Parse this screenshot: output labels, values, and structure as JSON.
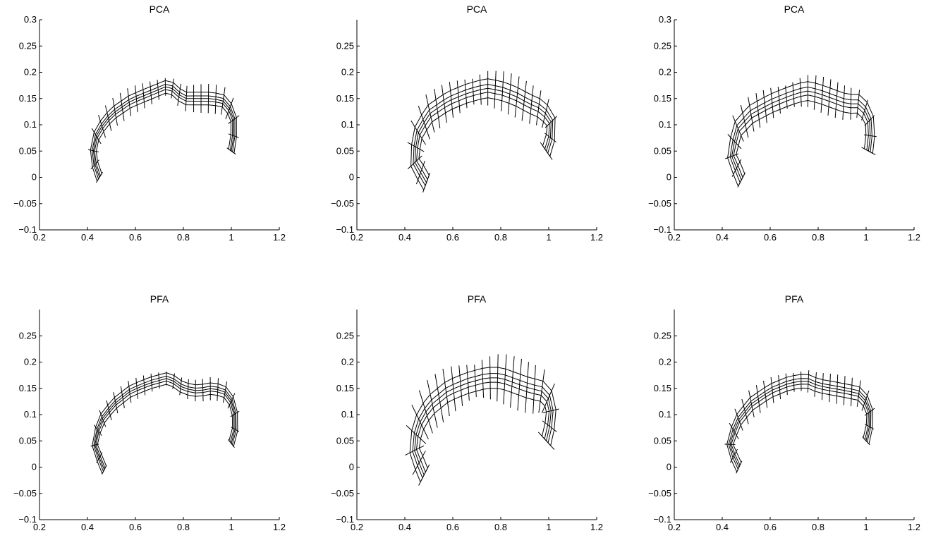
{
  "figure": {
    "background": "#ffffff",
    "line_color": "#000000"
  },
  "chart_data": [
    {
      "type": "line",
      "title": "PCA",
      "xlim": [
        0.2,
        1.2
      ],
      "ylim": [
        -0.1,
        0.3
      ],
      "xticks": [
        "0.2",
        "0.4",
        "0.6",
        "0.8",
        "1",
        "1.2"
      ],
      "yticks": [
        "-0.1",
        "-0.05",
        "0",
        "0.05",
        "0.1",
        "0.15",
        "0.2",
        "0.25",
        "0.3"
      ],
      "mode": {
        "offset": 0.012,
        "vector": 0.028,
        "vec_offset": [
          0.0,
          0.0
        ],
        "width": 1.0,
        "closed_end": false
      },
      "series": [
        {
          "x": [
            0.45,
            0.42,
            0.44,
            0.5,
            0.58,
            0.66,
            0.74,
            0.8,
            0.86,
            0.92,
            0.97,
            1.01,
            1.01,
            1.0
          ],
          "y": [
            0.0,
            0.04,
            0.085,
            0.12,
            0.145,
            0.16,
            0.175,
            0.15,
            0.15,
            0.15,
            0.145,
            0.12,
            0.08,
            0.05
          ]
        }
      ]
    },
    {
      "type": "line",
      "title": "PCA",
      "xlim": [
        0.2,
        1.2
      ],
      "ylim": [
        -0.1,
        0.3
      ],
      "xticks": [
        "0.2",
        "0.4",
        "0.6",
        "0.8",
        "1",
        "1.2"
      ],
      "yticks": [
        "-0.1",
        "-0.05",
        "0",
        "0.05",
        "0.1",
        "0.15",
        "0.2",
        "0.25"
      ],
      "mode": {
        "offset": 0.018,
        "vector": 0.04,
        "vec_offset": [
          0.0,
          0.0
        ],
        "width": 1.2,
        "closed_end": false
      },
      "series": [
        {
          "x": [
            0.49,
            0.44,
            0.45,
            0.5,
            0.58,
            0.66,
            0.74,
            0.8,
            0.86,
            0.92,
            0.97,
            1.01,
            1.01,
            0.99
          ],
          "y": [
            -0.01,
            0.03,
            0.08,
            0.12,
            0.145,
            0.16,
            0.17,
            0.165,
            0.155,
            0.14,
            0.13,
            0.11,
            0.08,
            0.05
          ]
        }
      ]
    },
    {
      "type": "line",
      "title": "PCA",
      "xlim": [
        0.2,
        1.2
      ],
      "ylim": [
        -0.1,
        0.3
      ],
      "xticks": [
        "0.2",
        "0.4",
        "0.6",
        "0.8",
        "1",
        "1.2"
      ],
      "yticks": [
        "-0.1",
        "-0.05",
        "0",
        "0.05",
        "0.1",
        "0.15",
        "0.2",
        "0.25",
        "0.3"
      ],
      "mode": {
        "offset": 0.018,
        "vector": 0.035,
        "vec_offset": [
          0.0,
          0.0
        ],
        "width": 1.3,
        "closed_end": false
      },
      "series": [
        {
          "x": [
            0.48,
            0.44,
            0.46,
            0.52,
            0.6,
            0.68,
            0.75,
            0.8,
            0.86,
            0.92,
            0.97,
            1.01,
            1.02,
            1.01
          ],
          "y": [
            -0.005,
            0.04,
            0.09,
            0.12,
            0.14,
            0.155,
            0.165,
            0.16,
            0.15,
            0.14,
            0.14,
            0.12,
            0.09,
            0.05
          ]
        }
      ]
    },
    {
      "type": "line",
      "title": "PFA",
      "xlim": [
        0.2,
        1.2
      ],
      "ylim": [
        -0.1,
        0.3
      ],
      "xticks": [
        "0.2",
        "0.4",
        "0.6",
        "0.8",
        "1",
        "1.2"
      ],
      "yticks": [
        "-0.1",
        "-0.05",
        "0",
        "0.05",
        "0.1",
        "0.15",
        "0.2",
        "0.25"
      ],
      "mode": {
        "offset": 0.011,
        "vector": 0.022,
        "vec_offset": [
          0.0,
          0.0
        ],
        "width": 1.0,
        "closed_end": false
      },
      "series": [
        {
          "x": [
            0.47,
            0.43,
            0.45,
            0.51,
            0.58,
            0.66,
            0.74,
            0.8,
            0.86,
            0.92,
            0.97,
            1.01,
            1.02,
            1.0
          ],
          "y": [
            -0.005,
            0.04,
            0.085,
            0.12,
            0.145,
            0.16,
            0.17,
            0.15,
            0.145,
            0.15,
            0.145,
            0.12,
            0.08,
            0.045
          ]
        }
      ]
    },
    {
      "type": "line",
      "title": "PFA",
      "xlim": [
        0.2,
        1.2
      ],
      "ylim": [
        -0.1,
        0.3
      ],
      "xticks": [
        "0.2",
        "0.4",
        "0.6",
        "0.8",
        "1",
        "1.2"
      ],
      "yticks": [
        "-0.1",
        "-0.05",
        "0",
        "0.05",
        "0.1",
        "0.15",
        "0.2",
        "0.25"
      ],
      "mode": {
        "offset": 0.02,
        "vector": 0.05,
        "vec_offset": [
          0.0,
          0.0
        ],
        "width": 1.2,
        "closed_end": false
      },
      "series": [
        {
          "x": [
            0.48,
            0.44,
            0.45,
            0.5,
            0.58,
            0.66,
            0.74,
            0.8,
            0.86,
            0.92,
            0.97,
            1.01,
            1.01,
            0.99
          ],
          "y": [
            -0.015,
            0.03,
            0.075,
            0.115,
            0.145,
            0.16,
            0.17,
            0.17,
            0.16,
            0.15,
            0.145,
            0.125,
            0.09,
            0.05
          ]
        }
      ]
    },
    {
      "type": "line",
      "title": "PFA",
      "xlim": [
        0.2,
        1.2
      ],
      "ylim": [
        -0.1,
        0.3
      ],
      "xticks": [
        "0.2",
        "0.4",
        "0.6",
        "0.8",
        "1",
        "1.2"
      ],
      "yticks": [
        "-0.1",
        "-0.05",
        "0",
        "0.05",
        "0.1",
        "0.15",
        "0.2",
        "0.25"
      ],
      "mode": {
        "offset": 0.013,
        "vector": 0.028,
        "vec_offset": [
          0.0,
          0.0
        ],
        "width": 1.1,
        "closed_end": false
      },
      "series": [
        {
          "x": [
            0.47,
            0.43,
            0.46,
            0.52,
            0.6,
            0.68,
            0.75,
            0.8,
            0.86,
            0.92,
            0.97,
            1.01,
            1.02,
            1.0
          ],
          "y": [
            0.0,
            0.04,
            0.085,
            0.12,
            0.145,
            0.16,
            0.165,
            0.155,
            0.15,
            0.145,
            0.14,
            0.12,
            0.09,
            0.05
          ]
        }
      ]
    }
  ]
}
